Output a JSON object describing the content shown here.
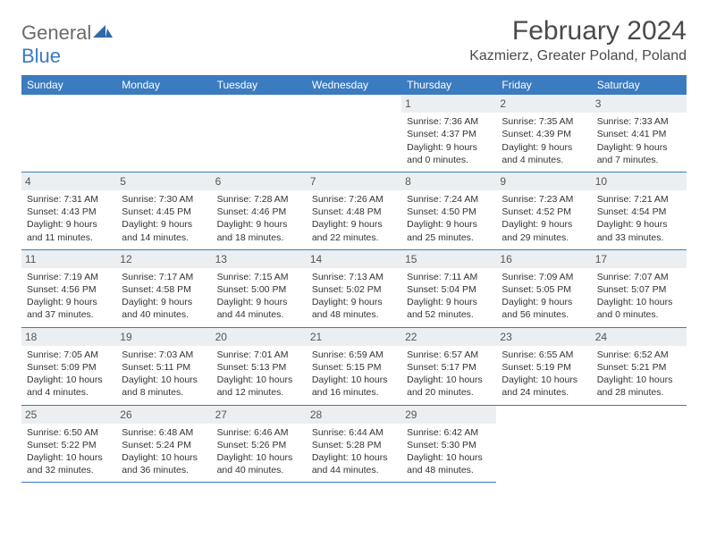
{
  "logo": {
    "word1": "General",
    "word2": "Blue"
  },
  "title": "February 2024",
  "location": "Kazmierz, Greater Poland, Poland",
  "colors": {
    "header_bg": "#3b7bbf",
    "header_text": "#ffffff",
    "daynum_bg": "#eceff1",
    "border": "#3b7bbf",
    "logo_gray": "#6b6b6b",
    "logo_blue": "#3b7bbf"
  },
  "typography": {
    "title_fontsize": 30,
    "location_fontsize": 16,
    "weekday_fontsize": 12,
    "cell_fontsize": 10.5
  },
  "weekdays": [
    "Sunday",
    "Monday",
    "Tuesday",
    "Wednesday",
    "Thursday",
    "Friday",
    "Saturday"
  ],
  "weeks": [
    [
      null,
      null,
      null,
      null,
      {
        "n": "1",
        "sr": "Sunrise: 7:36 AM",
        "ss": "Sunset: 4:37 PM",
        "d1": "Daylight: 9 hours",
        "d2": "and 0 minutes."
      },
      {
        "n": "2",
        "sr": "Sunrise: 7:35 AM",
        "ss": "Sunset: 4:39 PM",
        "d1": "Daylight: 9 hours",
        "d2": "and 4 minutes."
      },
      {
        "n": "3",
        "sr": "Sunrise: 7:33 AM",
        "ss": "Sunset: 4:41 PM",
        "d1": "Daylight: 9 hours",
        "d2": "and 7 minutes."
      }
    ],
    [
      {
        "n": "4",
        "sr": "Sunrise: 7:31 AM",
        "ss": "Sunset: 4:43 PM",
        "d1": "Daylight: 9 hours",
        "d2": "and 11 minutes."
      },
      {
        "n": "5",
        "sr": "Sunrise: 7:30 AM",
        "ss": "Sunset: 4:45 PM",
        "d1": "Daylight: 9 hours",
        "d2": "and 14 minutes."
      },
      {
        "n": "6",
        "sr": "Sunrise: 7:28 AM",
        "ss": "Sunset: 4:46 PM",
        "d1": "Daylight: 9 hours",
        "d2": "and 18 minutes."
      },
      {
        "n": "7",
        "sr": "Sunrise: 7:26 AM",
        "ss": "Sunset: 4:48 PM",
        "d1": "Daylight: 9 hours",
        "d2": "and 22 minutes."
      },
      {
        "n": "8",
        "sr": "Sunrise: 7:24 AM",
        "ss": "Sunset: 4:50 PM",
        "d1": "Daylight: 9 hours",
        "d2": "and 25 minutes."
      },
      {
        "n": "9",
        "sr": "Sunrise: 7:23 AM",
        "ss": "Sunset: 4:52 PM",
        "d1": "Daylight: 9 hours",
        "d2": "and 29 minutes."
      },
      {
        "n": "10",
        "sr": "Sunrise: 7:21 AM",
        "ss": "Sunset: 4:54 PM",
        "d1": "Daylight: 9 hours",
        "d2": "and 33 minutes."
      }
    ],
    [
      {
        "n": "11",
        "sr": "Sunrise: 7:19 AM",
        "ss": "Sunset: 4:56 PM",
        "d1": "Daylight: 9 hours",
        "d2": "and 37 minutes."
      },
      {
        "n": "12",
        "sr": "Sunrise: 7:17 AM",
        "ss": "Sunset: 4:58 PM",
        "d1": "Daylight: 9 hours",
        "d2": "and 40 minutes."
      },
      {
        "n": "13",
        "sr": "Sunrise: 7:15 AM",
        "ss": "Sunset: 5:00 PM",
        "d1": "Daylight: 9 hours",
        "d2": "and 44 minutes."
      },
      {
        "n": "14",
        "sr": "Sunrise: 7:13 AM",
        "ss": "Sunset: 5:02 PM",
        "d1": "Daylight: 9 hours",
        "d2": "and 48 minutes."
      },
      {
        "n": "15",
        "sr": "Sunrise: 7:11 AM",
        "ss": "Sunset: 5:04 PM",
        "d1": "Daylight: 9 hours",
        "d2": "and 52 minutes."
      },
      {
        "n": "16",
        "sr": "Sunrise: 7:09 AM",
        "ss": "Sunset: 5:05 PM",
        "d1": "Daylight: 9 hours",
        "d2": "and 56 minutes."
      },
      {
        "n": "17",
        "sr": "Sunrise: 7:07 AM",
        "ss": "Sunset: 5:07 PM",
        "d1": "Daylight: 10 hours",
        "d2": "and 0 minutes."
      }
    ],
    [
      {
        "n": "18",
        "sr": "Sunrise: 7:05 AM",
        "ss": "Sunset: 5:09 PM",
        "d1": "Daylight: 10 hours",
        "d2": "and 4 minutes."
      },
      {
        "n": "19",
        "sr": "Sunrise: 7:03 AM",
        "ss": "Sunset: 5:11 PM",
        "d1": "Daylight: 10 hours",
        "d2": "and 8 minutes."
      },
      {
        "n": "20",
        "sr": "Sunrise: 7:01 AM",
        "ss": "Sunset: 5:13 PM",
        "d1": "Daylight: 10 hours",
        "d2": "and 12 minutes."
      },
      {
        "n": "21",
        "sr": "Sunrise: 6:59 AM",
        "ss": "Sunset: 5:15 PM",
        "d1": "Daylight: 10 hours",
        "d2": "and 16 minutes."
      },
      {
        "n": "22",
        "sr": "Sunrise: 6:57 AM",
        "ss": "Sunset: 5:17 PM",
        "d1": "Daylight: 10 hours",
        "d2": "and 20 minutes."
      },
      {
        "n": "23",
        "sr": "Sunrise: 6:55 AM",
        "ss": "Sunset: 5:19 PM",
        "d1": "Daylight: 10 hours",
        "d2": "and 24 minutes."
      },
      {
        "n": "24",
        "sr": "Sunrise: 6:52 AM",
        "ss": "Sunset: 5:21 PM",
        "d1": "Daylight: 10 hours",
        "d2": "and 28 minutes."
      }
    ],
    [
      {
        "n": "25",
        "sr": "Sunrise: 6:50 AM",
        "ss": "Sunset: 5:22 PM",
        "d1": "Daylight: 10 hours",
        "d2": "and 32 minutes."
      },
      {
        "n": "26",
        "sr": "Sunrise: 6:48 AM",
        "ss": "Sunset: 5:24 PM",
        "d1": "Daylight: 10 hours",
        "d2": "and 36 minutes."
      },
      {
        "n": "27",
        "sr": "Sunrise: 6:46 AM",
        "ss": "Sunset: 5:26 PM",
        "d1": "Daylight: 10 hours",
        "d2": "and 40 minutes."
      },
      {
        "n": "28",
        "sr": "Sunrise: 6:44 AM",
        "ss": "Sunset: 5:28 PM",
        "d1": "Daylight: 10 hours",
        "d2": "and 44 minutes."
      },
      {
        "n": "29",
        "sr": "Sunrise: 6:42 AM",
        "ss": "Sunset: 5:30 PM",
        "d1": "Daylight: 10 hours",
        "d2": "and 48 minutes."
      },
      null,
      null
    ]
  ]
}
